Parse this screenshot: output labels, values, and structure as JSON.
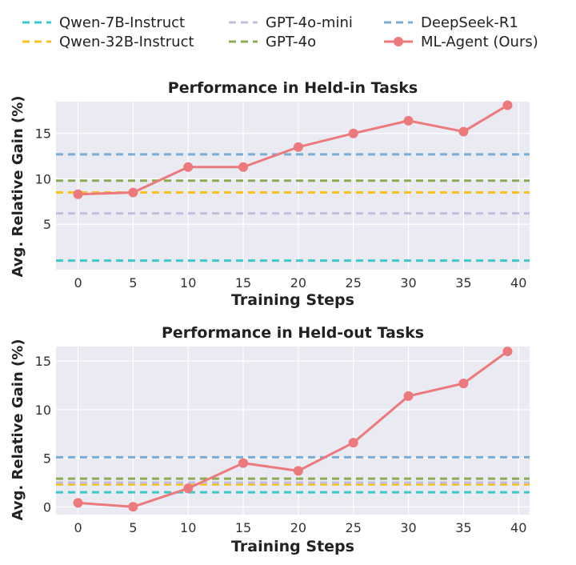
{
  "legend": [
    {
      "name": "Qwen-7B-Instruct",
      "color": "#3ec8c8",
      "style": "dashed"
    },
    {
      "name": "Qwen-32B-Instruct",
      "color": "#f7c21f",
      "style": "dashed"
    },
    {
      "name": "GPT-4o-mini",
      "color": "#c3bde0",
      "style": "dashed"
    },
    {
      "name": "GPT-4o",
      "color": "#8daa55",
      "style": "dashed"
    },
    {
      "name": "DeepSeek-R1",
      "color": "#7aadd6",
      "style": "dashed"
    },
    {
      "name": "ML-Agent (Ours)",
      "color": "#ec7a7c",
      "style": "line-marker"
    }
  ],
  "chart_data": [
    {
      "type": "line",
      "title": "Performance in Held-in Tasks",
      "xlabel": "Training Steps",
      "ylabel": "Avg. Relative Gain (%)",
      "xlim": [
        -2,
        41
      ],
      "ylim": [
        0,
        18.5
      ],
      "xticks": [
        "0",
        "5",
        "10",
        "15",
        "20",
        "25",
        "30",
        "35",
        "40"
      ],
      "yticks": [
        "5",
        "10",
        "15"
      ],
      "baselines": [
        {
          "name": "Qwen-7B-Instruct",
          "value": 1.0
        },
        {
          "name": "Qwen-32B-Instruct",
          "value": 8.5
        },
        {
          "name": "GPT-4o-mini",
          "value": 6.2
        },
        {
          "name": "GPT-4o",
          "value": 9.8
        },
        {
          "name": "DeepSeek-R1",
          "value": 12.7
        }
      ],
      "series": [
        {
          "name": "ML-Agent (Ours)",
          "x": [
            0,
            5,
            10,
            15,
            20,
            25,
            30,
            35,
            39
          ],
          "values": [
            8.3,
            8.5,
            11.3,
            11.3,
            13.5,
            15.0,
            16.4,
            15.2,
            18.1
          ]
        }
      ]
    },
    {
      "type": "line",
      "title": "Performance in Held-out Tasks",
      "xlabel": "Training Steps",
      "ylabel": "Avg. Relative Gain (%)",
      "xlim": [
        -2,
        41
      ],
      "ylim": [
        -0.8,
        16.5
      ],
      "xticks": [
        "0",
        "5",
        "10",
        "15",
        "20",
        "25",
        "30",
        "35",
        "40"
      ],
      "yticks": [
        "0",
        "5",
        "10",
        "15"
      ],
      "baselines": [
        {
          "name": "Qwen-7B-Instruct",
          "value": 1.5
        },
        {
          "name": "Qwen-32B-Instruct",
          "value": 2.3
        },
        {
          "name": "GPT-4o-mini",
          "value": 2.5
        },
        {
          "name": "GPT-4o",
          "value": 2.9
        },
        {
          "name": "DeepSeek-R1",
          "value": 5.1
        }
      ],
      "series": [
        {
          "name": "ML-Agent (Ours)",
          "x": [
            0,
            5,
            10,
            15,
            20,
            25,
            30,
            35,
            39
          ],
          "values": [
            0.4,
            0.0,
            1.9,
            4.5,
            3.7,
            6.6,
            11.4,
            12.7,
            16.0
          ]
        }
      ]
    }
  ]
}
